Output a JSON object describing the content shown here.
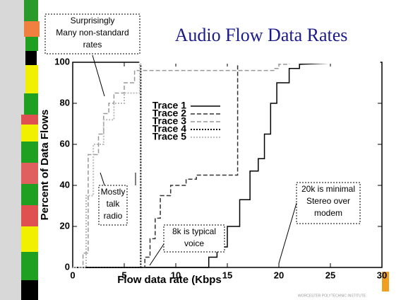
{
  "chart_data": {
    "type": "line",
    "title": "Audio Flow Data Rates",
    "x_label": "Flow data rate (Kbps",
    "y_label": "Percent of Data Flows",
    "xlim": [
      0,
      30
    ],
    "xticks": [
      0,
      5,
      10,
      15,
      20,
      25,
      30
    ],
    "ylim": [
      0,
      100
    ],
    "yticks": [
      0,
      20,
      40,
      60,
      80,
      100
    ],
    "series": [
      {
        "name": "Trace 1",
        "color": "#000000",
        "style": "solid",
        "x": [
          0,
          13.2,
          13.2,
          14,
          14,
          15,
          15,
          16.2,
          16.2,
          17.2,
          17.2,
          18,
          18,
          18.6,
          18.6,
          19.2,
          19.2,
          19.8,
          19.8,
          21,
          21,
          22,
          22,
          27
        ],
        "values": [
          0,
          0,
          5,
          5,
          10,
          10,
          20,
          20,
          33,
          33,
          47,
          47,
          53,
          53,
          65,
          65,
          80,
          80,
          90,
          90,
          97,
          97,
          99,
          100
        ]
      },
      {
        "name": "Trace 2",
        "color": "#333333",
        "style": "dashed",
        "x": [
          6.8,
          7,
          7,
          7.5,
          7.5,
          8,
          8,
          8.5,
          8.5,
          9.5,
          9.5,
          11,
          11,
          12,
          12,
          16,
          16,
          30
        ],
        "values": [
          0,
          0,
          5,
          5,
          14,
          14,
          24,
          24,
          35,
          35,
          40,
          40,
          43,
          43,
          45,
          45,
          100,
          100
        ]
      },
      {
        "name": "Trace 3",
        "color": "#999999",
        "style": "dashed",
        "x": [
          0,
          1,
          1,
          1.5,
          1.5,
          2.5,
          2.5,
          3,
          3,
          3.5,
          3.5,
          4,
          4,
          5,
          5,
          6,
          6,
          19.6,
          19.6,
          20,
          20,
          21,
          21,
          30
        ],
        "values": [
          0,
          0,
          7,
          7,
          55,
          55,
          65,
          65,
          75,
          75,
          80,
          80,
          85,
          85,
          90,
          90,
          96,
          96,
          97,
          97,
          99,
          99,
          100,
          100
        ]
      },
      {
        "name": "Trace 4",
        "color": "#000000",
        "style": "dotted",
        "x": [
          0,
          6.6,
          6.6,
          30
        ],
        "values": [
          0,
          0,
          100,
          100
        ]
      },
      {
        "name": "Trace 5",
        "color": "#bbbbbb",
        "style": "dotted",
        "x": [
          0,
          1.3,
          1.3,
          2,
          2,
          3,
          3,
          4,
          4,
          5,
          5,
          6.5,
          6.5,
          30
        ],
        "values": [
          0,
          0,
          35,
          35,
          60,
          60,
          72,
          72,
          80,
          80,
          85,
          85,
          100,
          100
        ]
      }
    ],
    "annotations": [
      [
        "Surprisingly",
        "Many non-standard",
        "rates"
      ],
      [
        "Mostly",
        "talk",
        "radio"
      ],
      [
        "8k is typical",
        "voice"
      ],
      [
        "20k is minimal",
        "Stereo over",
        "modem"
      ]
    ],
    "footer": "WORCESTER POLYTECHNIC INSTITUTE"
  }
}
